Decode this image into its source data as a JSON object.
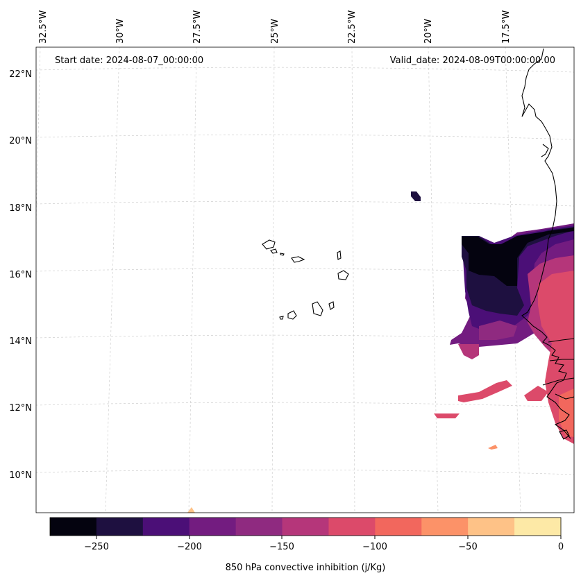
{
  "header": {
    "start_date": "Start date: 2024-08-07_00:00:00",
    "valid_date": "Valid_date: 2024-08-09T00:00:00.00"
  },
  "axes": {
    "lon_labels": [
      "32.5°W",
      "30°W",
      "27.5°W",
      "25°W",
      "22.5°W",
      "20°W",
      "17.5°W"
    ],
    "lat_labels": [
      "22°N",
      "20°N",
      "18°N",
      "16°N",
      "14°N",
      "12°N",
      "10°N"
    ]
  },
  "colorbar": {
    "label": "850 hPa convective inhibition (j/Kg)",
    "ticks": [
      "−250",
      "−200",
      "−150",
      "−100",
      "−50",
      "0"
    ],
    "colors": [
      "#04030f",
      "#1e1040",
      "#4b0f77",
      "#731c80",
      "#8f2a80",
      "#b5367a",
      "#dc4a6a",
      "#f2675d",
      "#fc9268",
      "#fec287",
      "#fde9a6"
    ]
  },
  "chart_data": {
    "type": "heatmap",
    "variable": "850 hPa convective inhibition",
    "units": "j/Kg",
    "colorbar_range": [
      -275,
      0
    ],
    "colorbar_step": 25,
    "lon_range": [
      -33.0,
      -16.0
    ],
    "lat_range": [
      9.0,
      22.8
    ],
    "title_left": "Start date: 2024-08-07_00:00:00",
    "title_right": "Valid_date: 2024-08-09T00:00:00.00"
  }
}
